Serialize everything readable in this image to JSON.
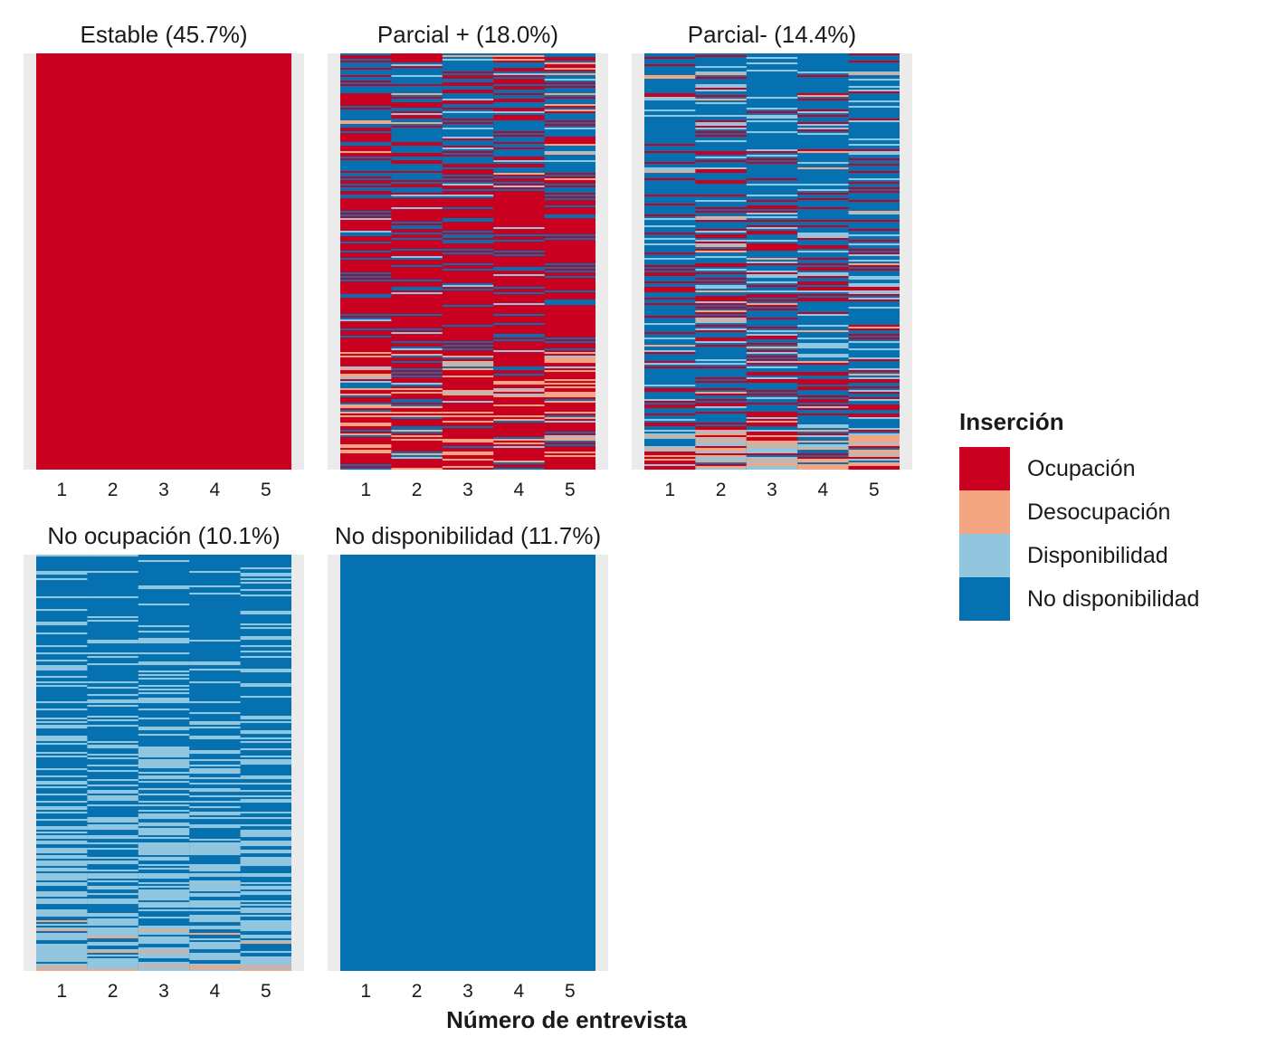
{
  "colors": {
    "ocupacion": "#ca0020",
    "desocupacion": "#f4a582",
    "disponibilidad": "#92c5de",
    "no_disponibilidad": "#0571b0",
    "panel_background": "#ebebeb"
  },
  "chart_data": {
    "type": "heatmap",
    "title": "",
    "xlabel": "Número de entrevista",
    "ylabel": "",
    "grid": false,
    "legend_placement": "right",
    "x": [
      "1",
      "2",
      "3",
      "4",
      "5"
    ],
    "legend": {
      "title": "Inserción",
      "items": [
        {
          "label": "Ocupación",
          "color_key": "ocupacion"
        },
        {
          "label": "Desocupación",
          "color_key": "desocupacion"
        },
        {
          "label": "Disponibilidad",
          "color_key": "disponibilidad"
        },
        {
          "label": "No disponibilidad",
          "color_key": "no_disponibilidad"
        }
      ]
    },
    "panels": [
      {
        "title": "Estable (45.7%)",
        "share_pct": 45.7,
        "pattern": "solid",
        "dominant": "ocupacion"
      },
      {
        "title": "Parcial + (18.0%)",
        "share_pct": 18.0,
        "pattern": "mixed",
        "dominant": "ocupacion",
        "secondary": "no_disponibilidad"
      },
      {
        "title": "Parcial- (14.4%)",
        "share_pct": 14.4,
        "pattern": "mixed",
        "dominant": "no_disponibilidad",
        "secondary": "ocupacion"
      },
      {
        "title": "No ocupación (10.1%)",
        "share_pct": 10.1,
        "pattern": "mixed",
        "dominant": "no_disponibilidad",
        "secondary": "disponibilidad"
      },
      {
        "title": "No disponibilidad (11.7%)",
        "share_pct": 11.7,
        "pattern": "solid",
        "dominant": "no_disponibilidad"
      }
    ]
  }
}
